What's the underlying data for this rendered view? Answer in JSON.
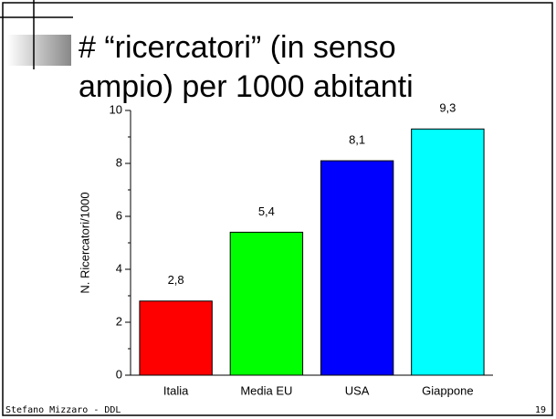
{
  "slide": {
    "title_lines": [
      "# “ricercatori” (in senso",
      "ampio) per 1000 abitanti"
    ],
    "footer": "Stefano Mizzaro - DDL",
    "page_number": "19"
  },
  "chart_data": {
    "type": "bar",
    "ylabel": "N. Ricercatori/1000",
    "categories": [
      "Italia",
      "Media EU",
      "USA",
      "Giappone"
    ],
    "values": [
      2.8,
      5.4,
      8.1,
      9.3
    ],
    "value_labels": [
      "2,8",
      "5,4",
      "8,1",
      "9,3"
    ],
    "colors": [
      "#ff0000",
      "#00ff00",
      "#0000ff",
      "#00ffff"
    ],
    "ylim": [
      0,
      10
    ],
    "yticks": [
      0,
      2,
      4,
      6,
      8,
      10
    ],
    "grid": false
  }
}
